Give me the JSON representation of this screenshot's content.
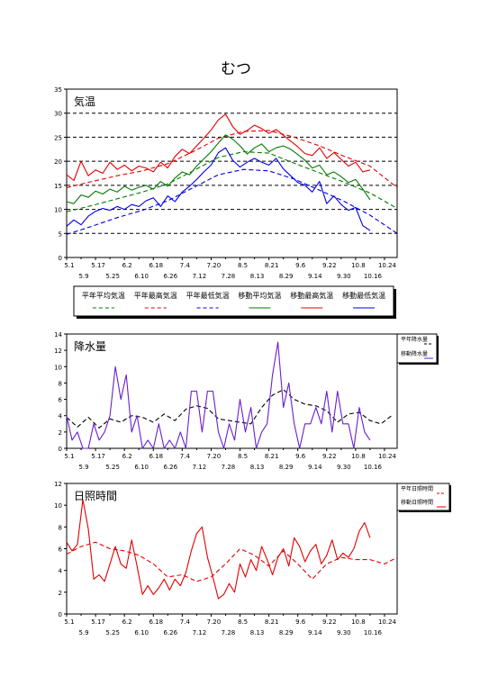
{
  "page": {
    "title": "むつ"
  },
  "chart_data": [
    {
      "type": "line",
      "title": "気温",
      "ylim": [
        0,
        35
      ],
      "yticks": [
        "0",
        "5",
        "10",
        "15",
        "20",
        "25",
        "30",
        "35"
      ],
      "xticks_top": [
        "5.1",
        "5.17",
        "6.2",
        "6.18",
        "7.4",
        "7.20",
        "8.5",
        "8.21",
        "9.6",
        "9.22",
        "10.8",
        "10.24"
      ],
      "xticks_bottom": [
        "5.9",
        "5.25",
        "6.10",
        "6.26",
        "7.12",
        "7.28",
        "8.13",
        "8.29",
        "9.14",
        "9.30",
        "10.16"
      ],
      "x_start": "5.1",
      "x_end": "10.31",
      "grid": "dashed horizontal",
      "legend_position": "bottom",
      "legend": [
        {
          "name": "平年平均気温",
          "color": "#007a00",
          "style": "dashed"
        },
        {
          "name": "平年最高気温",
          "color": "#e00000",
          "style": "dashed"
        },
        {
          "name": "平年最低気温",
          "color": "#0000e0",
          "style": "dashed"
        },
        {
          "name": "移動平均気温",
          "color": "#007a00",
          "style": "solid"
        },
        {
          "name": "移動最高気温",
          "color": "#e00000",
          "style": "solid"
        },
        {
          "name": "移動最低気温",
          "color": "#0000e0",
          "style": "solid"
        }
      ],
      "series": [
        {
          "name": "平年平均気温",
          "color": "#007a00",
          "style": "dashed",
          "x": [
            0,
            14,
            28,
            42,
            56,
            70,
            84,
            98,
            112,
            126,
            140,
            154,
            168,
            183
          ],
          "values": [
            9.5,
            10.8,
            12.2,
            13.6,
            15.3,
            18.0,
            20.8,
            22.0,
            21.7,
            19.6,
            17.6,
            15.6,
            13.4,
            10.2
          ]
        },
        {
          "name": "平年最高気温",
          "color": "#e00000",
          "style": "dashed",
          "x": [
            0,
            14,
            28,
            42,
            56,
            70,
            84,
            98,
            112,
            126,
            140,
            154,
            168,
            183
          ],
          "values": [
            14.5,
            15.8,
            17.0,
            18.0,
            19.5,
            22.0,
            24.8,
            26.2,
            26.4,
            25.0,
            23.2,
            21.0,
            19.0,
            14.5
          ]
        },
        {
          "name": "平年最低気温",
          "color": "#0000e0",
          "style": "dashed",
          "x": [
            0,
            14,
            28,
            42,
            56,
            70,
            84,
            98,
            112,
            126,
            140,
            154,
            168,
            183
          ],
          "values": [
            4.8,
            6.5,
            8.3,
            9.8,
            11.8,
            14.5,
            17.2,
            18.3,
            18.0,
            16.3,
            14.0,
            11.6,
            8.8,
            5.0
          ]
        },
        {
          "name": "移動平均気温",
          "color": "#007a00",
          "style": "solid",
          "x": [
            0,
            4,
            8,
            12,
            16,
            20,
            24,
            28,
            32,
            36,
            40,
            44,
            48,
            52,
            56,
            60,
            64,
            68,
            72,
            76,
            80,
            84,
            88,
            92,
            96,
            100,
            104,
            108,
            112,
            116,
            120,
            124,
            128,
            132,
            136,
            140,
            144,
            148,
            152,
            156,
            160,
            164,
            168
          ],
          "values": [
            11.6,
            11.2,
            13.0,
            12.5,
            13.8,
            13.2,
            14.2,
            13.6,
            14.8,
            14.0,
            14.6,
            15.0,
            14.2,
            15.8,
            14.8,
            16.5,
            17.8,
            17.2,
            19.0,
            20.5,
            22.0,
            23.8,
            25.5,
            24.6,
            23.2,
            21.5,
            22.8,
            23.6,
            22.0,
            22.8,
            23.2,
            22.5,
            21.4,
            20.2,
            18.6,
            19.2,
            17.2,
            17.8,
            16.8,
            15.6,
            16.2,
            14.2,
            12.0
          ]
        },
        {
          "name": "移動最高気温",
          "color": "#e00000",
          "style": "solid",
          "x": [
            0,
            4,
            8,
            12,
            16,
            20,
            24,
            28,
            32,
            36,
            40,
            44,
            48,
            52,
            56,
            60,
            64,
            68,
            72,
            76,
            80,
            84,
            88,
            92,
            96,
            100,
            104,
            108,
            112,
            116,
            120,
            124,
            128,
            132,
            136,
            140,
            144,
            148,
            152,
            156,
            160,
            164,
            168
          ],
          "values": [
            17.2,
            16.0,
            20.0,
            17.0,
            18.2,
            17.5,
            19.8,
            18.3,
            19.2,
            18.0,
            19.0,
            18.6,
            17.8,
            19.8,
            18.6,
            21.0,
            22.5,
            21.6,
            23.2,
            24.8,
            26.5,
            28.6,
            29.8,
            27.2,
            25.6,
            26.4,
            27.5,
            26.8,
            25.8,
            26.6,
            25.4,
            24.2,
            23.0,
            21.6,
            21.2,
            22.8,
            20.6,
            21.8,
            20.4,
            19.0,
            19.8,
            17.8,
            18.2
          ]
        },
        {
          "name": "移動最低気温",
          "color": "#0000e0",
          "style": "solid",
          "x": [
            0,
            4,
            8,
            12,
            16,
            20,
            24,
            28,
            32,
            36,
            40,
            44,
            48,
            52,
            56,
            60,
            64,
            68,
            72,
            76,
            80,
            84,
            88,
            92,
            96,
            100,
            104,
            108,
            112,
            116,
            120,
            124,
            128,
            132,
            136,
            140,
            144,
            148,
            152,
            156,
            160,
            164,
            168
          ],
          "values": [
            6.5,
            7.8,
            6.8,
            8.6,
            9.6,
            10.2,
            9.8,
            10.6,
            10.0,
            11.0,
            10.6,
            11.8,
            12.4,
            10.6,
            12.8,
            11.6,
            13.6,
            14.8,
            16.2,
            17.8,
            19.2,
            21.8,
            22.8,
            20.2,
            18.8,
            19.8,
            20.6,
            19.8,
            19.2,
            20.6,
            18.4,
            17.0,
            15.6,
            15.0,
            13.6,
            15.8,
            11.2,
            12.8,
            11.0,
            9.8,
            10.4,
            6.6,
            5.6
          ]
        }
      ]
    },
    {
      "type": "line",
      "title": "降水量",
      "ylim": [
        0,
        14
      ],
      "yticks": [
        "0",
        "2",
        "4",
        "6",
        "8",
        "10",
        "12",
        "14"
      ],
      "xticks_top": [
        "5.1",
        "5.17",
        "6.2",
        "6.18",
        "7.4",
        "7.20",
        "8.5",
        "8.21",
        "9.6",
        "9.22",
        "10.8",
        "10.24"
      ],
      "xticks_bottom": [
        "5.9",
        "5.25",
        "6.10",
        "6.26",
        "7.12",
        "7.28",
        "8.13",
        "8.29",
        "9.14",
        "9.30",
        "10.16"
      ],
      "x_start": "5.1",
      "x_end": "10.31",
      "legend_position": "right",
      "legend": [
        {
          "name": "平年降水量",
          "color": "#000000",
          "style": "dashed"
        },
        {
          "name": "移動降水量",
          "color": "#6a1fd0",
          "style": "solid"
        }
      ],
      "series": [
        {
          "name": "平年降水量",
          "color": "#000000",
          "style": "dashed",
          "x": [
            0,
            6,
            12,
            18,
            24,
            30,
            36,
            42,
            48,
            54,
            60,
            66,
            72,
            78,
            84,
            90,
            96,
            102,
            108,
            114,
            120,
            126,
            132,
            138,
            144,
            150,
            156,
            162,
            168,
            174,
            180
          ],
          "values": [
            3.8,
            2.6,
            3.8,
            2.5,
            3.6,
            3.2,
            4.0,
            3.8,
            3.2,
            4.2,
            3.4,
            4.8,
            5.2,
            4.9,
            3.6,
            3.4,
            3.2,
            3.0,
            5.0,
            6.5,
            7.2,
            6.0,
            5.4,
            5.2,
            4.6,
            3.2,
            4.2,
            4.4,
            3.4,
            3.0,
            4.0
          ]
        },
        {
          "name": "移動降水量",
          "color": "#6a1fd0",
          "style": "solid",
          "x": [
            0,
            3,
            6,
            9,
            12,
            15,
            18,
            21,
            24,
            27,
            30,
            33,
            36,
            39,
            42,
            45,
            48,
            51,
            54,
            57,
            60,
            63,
            66,
            69,
            72,
            75,
            78,
            81,
            84,
            87,
            90,
            93,
            96,
            99,
            102,
            105,
            108,
            111,
            114,
            117,
            120,
            123,
            126,
            129,
            132,
            135,
            138,
            141,
            144,
            147,
            150,
            153,
            156,
            159,
            162,
            165,
            168
          ],
          "values": [
            4,
            1,
            2,
            0,
            0,
            3,
            1,
            2,
            4,
            10,
            6,
            9,
            2,
            4,
            0,
            1,
            0,
            3,
            0,
            1,
            0,
            2,
            0,
            7,
            7,
            2,
            7,
            7,
            2,
            0,
            3,
            1,
            6,
            2,
            5,
            0,
            2,
            3,
            9,
            13,
            5,
            8,
            3,
            0,
            3,
            3,
            5,
            3,
            7,
            2,
            7,
            3,
            3,
            0,
            5,
            2,
            1
          ]
        }
      ]
    },
    {
      "type": "line",
      "title": "日照時間",
      "ylim": [
        0,
        12
      ],
      "yticks": [
        "0",
        "2",
        "4",
        "6",
        "8",
        "10",
        "12"
      ],
      "xticks_top": [
        "5.1",
        "5.17",
        "6.2",
        "6.18",
        "7.4",
        "7.20",
        "8.5",
        "8.21",
        "9.6",
        "9.22",
        "10.8",
        "10.24"
      ],
      "xticks_bottom": [
        "5.9",
        "5.25",
        "6.10",
        "6.26",
        "7.12",
        "7.28",
        "8.13",
        "8.29",
        "9.14",
        "9.30",
        "10.16"
      ],
      "x_start": "5.1",
      "x_end": "10.31",
      "legend_position": "right",
      "legend": [
        {
          "name": "平年日照時間",
          "color": "#e00000",
          "style": "dashed"
        },
        {
          "name": "移動日照時間",
          "color": "#e00000",
          "style": "solid"
        }
      ],
      "series": [
        {
          "name": "平年日照時間",
          "color": "#e00000",
          "style": "dashed",
          "x": [
            0,
            8,
            16,
            24,
            32,
            40,
            48,
            56,
            64,
            72,
            80,
            88,
            96,
            104,
            112,
            120,
            128,
            136,
            144,
            152,
            160,
            168,
            176,
            183
          ],
          "values": [
            5.5,
            6.2,
            6.6,
            6.0,
            5.8,
            5.4,
            4.6,
            3.4,
            3.6,
            3.0,
            3.4,
            4.6,
            6.0,
            5.4,
            4.4,
            5.8,
            4.6,
            3.2,
            4.6,
            5.2,
            5.0,
            5.0,
            4.6,
            5.2
          ]
        },
        {
          "name": "移動日照時間",
          "color": "#e00000",
          "style": "solid",
          "x": [
            0,
            3,
            6,
            9,
            12,
            15,
            18,
            21,
            24,
            27,
            30,
            33,
            36,
            39,
            42,
            45,
            48,
            51,
            54,
            57,
            60,
            63,
            66,
            69,
            72,
            75,
            78,
            81,
            84,
            87,
            90,
            93,
            96,
            99,
            102,
            105,
            108,
            111,
            114,
            117,
            120,
            123,
            126,
            129,
            132,
            135,
            138,
            141,
            144,
            147,
            150,
            153,
            156,
            159,
            162,
            165,
            168
          ],
          "values": [
            6.6,
            5.8,
            6.4,
            10.5,
            7.8,
            3.2,
            3.6,
            3.0,
            4.6,
            6.2,
            4.6,
            4.2,
            6.8,
            4.4,
            1.8,
            2.6,
            1.8,
            2.4,
            3.2,
            2.2,
            3.2,
            2.6,
            3.8,
            5.8,
            7.4,
            8.0,
            5.2,
            3.4,
            1.4,
            1.8,
            2.8,
            2.0,
            4.6,
            3.4,
            5.0,
            4.0,
            6.2,
            5.0,
            3.6,
            5.2,
            6.0,
            4.4,
            7.0,
            6.2,
            4.8,
            5.8,
            6.4,
            4.6,
            5.4,
            6.8,
            5.0,
            5.6,
            5.2,
            6.0,
            7.6,
            8.4,
            7.0
          ]
        }
      ]
    }
  ]
}
